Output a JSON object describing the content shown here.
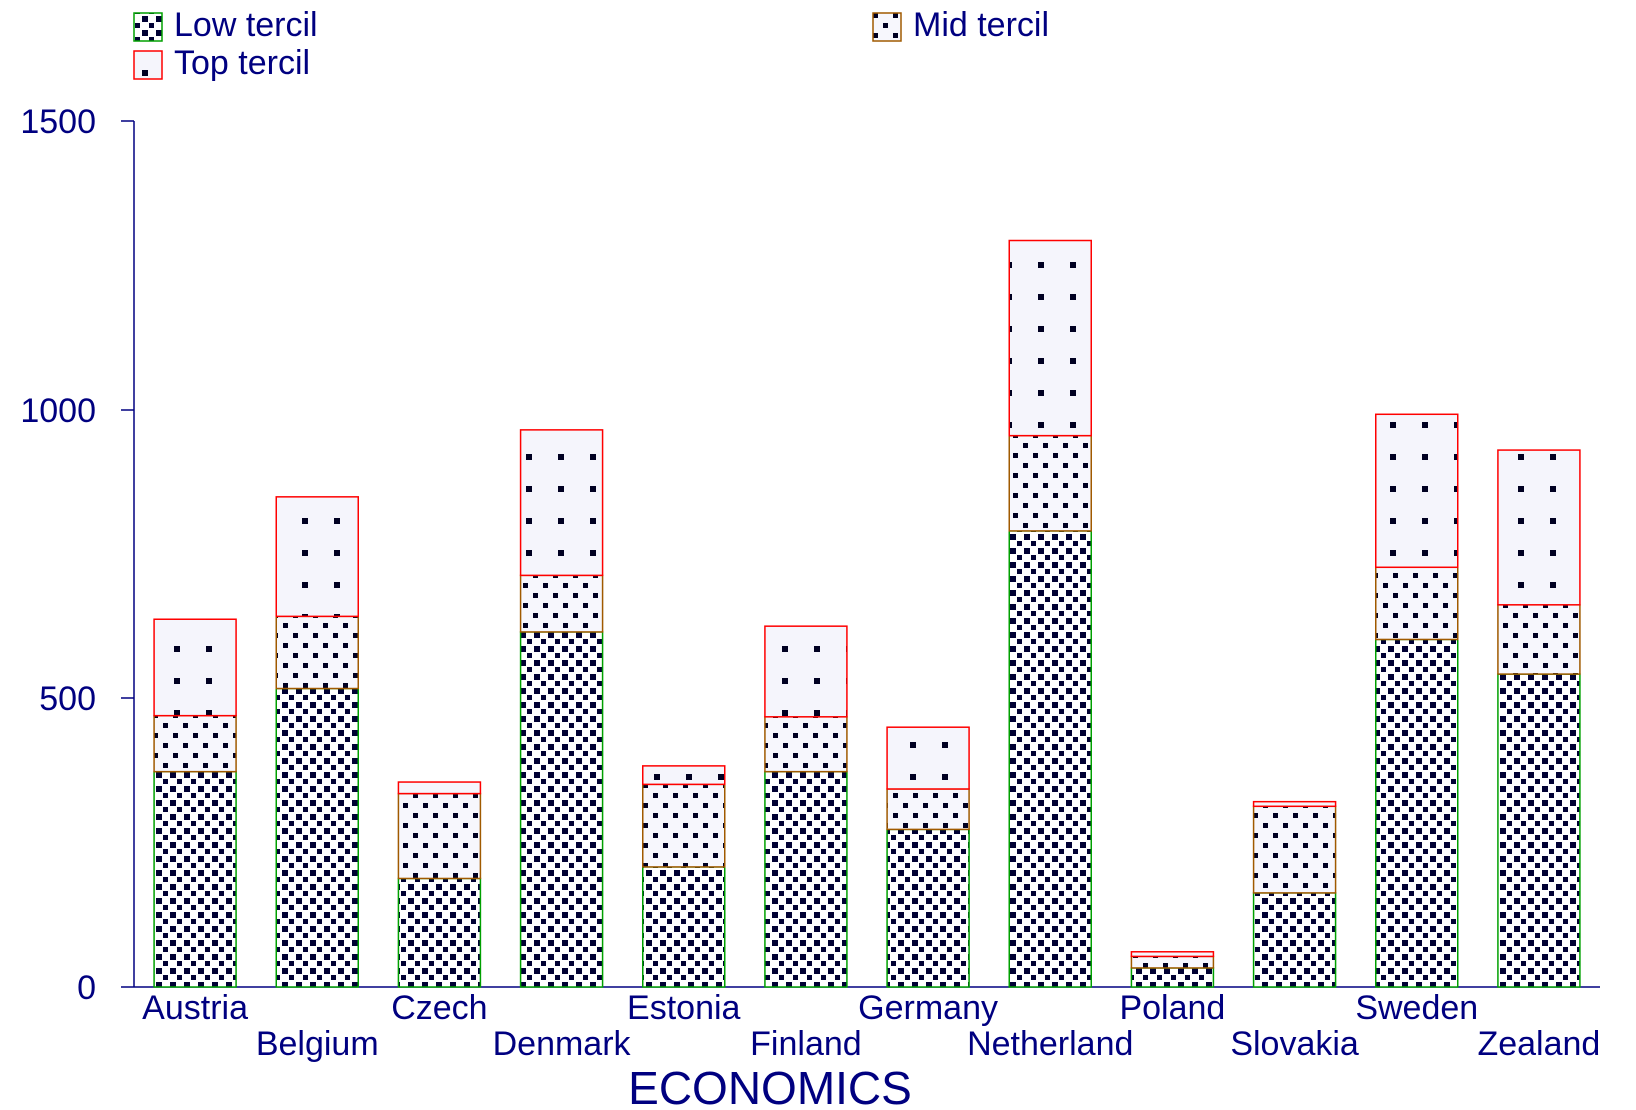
{
  "chart_data": {
    "type": "bar",
    "stacked": true,
    "title": "",
    "xlabel": "ECONOMICS",
    "ylabel": "",
    "ylim": [
      0,
      1500
    ],
    "yticks": [
      "0",
      "500",
      "1000",
      "1500"
    ],
    "grid": false,
    "legend_position": "top",
    "categories": [
      "Austria",
      "Belgium",
      "Czech",
      "Denmark",
      "Estonia",
      "Finland",
      "Germany",
      "Netherland",
      "Poland",
      "Slovakia",
      "Sweden",
      "Zealand"
    ],
    "series": [
      {
        "name": "Low tercil",
        "values": [
          373,
          517,
          188,
          615,
          208,
          373,
          273,
          790,
          33,
          163,
          602,
          542
        ],
        "border_color": "#00a000",
        "pattern": "checker"
      },
      {
        "name": "Mid tercil",
        "values": [
          97,
          125,
          147,
          98,
          143,
          95,
          70,
          165,
          20,
          150,
          125,
          120
        ],
        "border_color": "#a05a00",
        "pattern": "dots"
      },
      {
        "name": "Top tercil",
        "values": [
          167,
          207,
          20,
          252,
          32,
          157,
          107,
          338,
          8,
          8,
          265,
          268
        ],
        "border_color": "#ff0000",
        "pattern": "sparse"
      }
    ]
  }
}
